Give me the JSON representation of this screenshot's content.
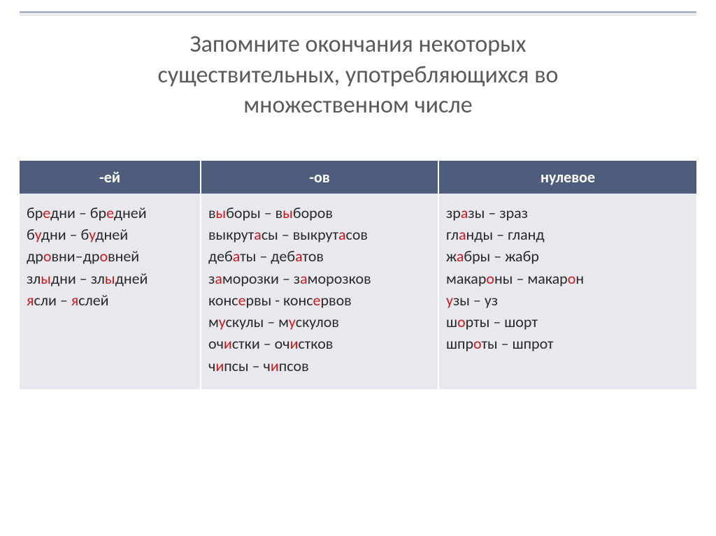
{
  "title_l1": "Запомните окончания некоторых",
  "title_l2": "существительных, употребляющихся во",
  "title_l3": "множественном числе",
  "headers": {
    "c1": "-ей",
    "c2": "-ов",
    "c3": "нулевое"
  },
  "col1": [
    [
      [
        "бр",
        0
      ],
      [
        "е",
        1
      ],
      [
        "дни – бр",
        0
      ],
      [
        "е",
        1
      ],
      [
        "дней",
        0
      ]
    ],
    [
      [
        "б",
        0
      ],
      [
        "у",
        1
      ],
      [
        "дни – б",
        0
      ],
      [
        "у",
        1
      ],
      [
        "дней",
        0
      ]
    ],
    [
      [
        "др",
        0
      ],
      [
        "о",
        1
      ],
      [
        "вни–др",
        0
      ],
      [
        "о",
        1
      ],
      [
        "вней",
        0
      ]
    ],
    [
      [
        "зл",
        0
      ],
      [
        "ы",
        1
      ],
      [
        "дни – зл",
        0
      ],
      [
        "ы",
        1
      ],
      [
        "дней",
        0
      ]
    ],
    [
      [
        "я",
        1
      ],
      [
        "сли – ",
        0
      ],
      [
        "я",
        1
      ],
      [
        "слей",
        0
      ]
    ]
  ],
  "col2": [
    [
      [
        "в",
        0
      ],
      [
        "ы",
        1
      ],
      [
        "боры – в",
        0
      ],
      [
        "ы",
        1
      ],
      [
        "боров",
        0
      ]
    ],
    [
      [
        "выкрут",
        0
      ],
      [
        "а",
        1
      ],
      [
        "сы – выкрут",
        0
      ],
      [
        "а",
        1
      ],
      [
        "сов",
        0
      ]
    ],
    [
      [
        "деб",
        0
      ],
      [
        "а",
        1
      ],
      [
        "ты – деб",
        0
      ],
      [
        "а",
        1
      ],
      [
        "тов",
        0
      ]
    ],
    [
      [
        "з",
        0
      ],
      [
        "а",
        1
      ],
      [
        "морозки – з",
        0
      ],
      [
        "а",
        1
      ],
      [
        "морозков",
        0
      ]
    ],
    [
      [
        "конс",
        0
      ],
      [
        "е",
        1
      ],
      [
        "рвы - конс",
        0
      ],
      [
        "е",
        1
      ],
      [
        "рвов",
        0
      ]
    ],
    [
      [
        "м",
        0
      ],
      [
        "у",
        1
      ],
      [
        "скулы – м",
        0
      ],
      [
        "у",
        1
      ],
      [
        "скулов",
        0
      ]
    ],
    [
      [
        "оч",
        0
      ],
      [
        "и",
        1
      ],
      [
        "стки – оч",
        0
      ],
      [
        "и",
        1
      ],
      [
        "стков",
        0
      ]
    ],
    [
      [
        "ч",
        0
      ],
      [
        "и",
        1
      ],
      [
        "псы – ч",
        0
      ],
      [
        "и",
        1
      ],
      [
        "псов",
        0
      ]
    ]
  ],
  "col3": [
    [
      [
        "зр",
        0
      ],
      [
        "а",
        1
      ],
      [
        "зы – зраз",
        0
      ]
    ],
    [
      [
        "гл",
        0
      ],
      [
        "а",
        1
      ],
      [
        "нды – гланд",
        0
      ]
    ],
    [
      [
        "ж",
        0
      ],
      [
        "а",
        1
      ],
      [
        "бры – жабр",
        0
      ]
    ],
    [
      [
        "макар",
        0
      ],
      [
        "о",
        1
      ],
      [
        "ны – макар",
        0
      ],
      [
        "о",
        1
      ],
      [
        "н",
        0
      ]
    ],
    [
      [
        "у",
        1
      ],
      [
        "зы – уз",
        0
      ]
    ],
    [
      [
        "ш",
        0
      ],
      [
        "о",
        1
      ],
      [
        "рты – шорт",
        0
      ]
    ],
    [
      [
        "шпр",
        0
      ],
      [
        "о",
        1
      ],
      [
        "ты – шпрот",
        0
      ]
    ]
  ],
  "colors": {
    "header_bg": "#4f5d7c",
    "body_bg": "#e7e9ef",
    "accent": "#d01818",
    "title": "#5a5a5a",
    "rule": "#a9b4c8"
  }
}
